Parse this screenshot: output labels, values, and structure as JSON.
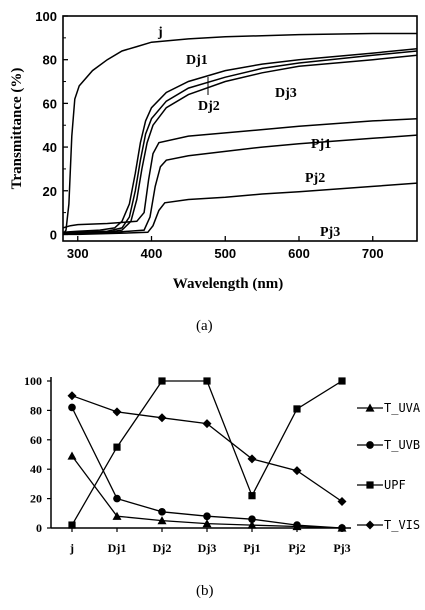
{
  "chart_data": [
    {
      "type": "line",
      "caption": "(a)",
      "xlabel": "Wavelength  (nm)",
      "ylabel": "Transmittance (%)",
      "xlim": [
        280,
        760
      ],
      "ylim": [
        -3,
        100
      ],
      "xticks": [
        300,
        400,
        500,
        600,
        700
      ],
      "yticks": [
        0,
        20,
        40,
        60,
        80,
        100
      ],
      "grid": false,
      "series": [
        {
          "name": "j",
          "points": [
            [
              280,
              0
            ],
            [
              284,
              2
            ],
            [
              288,
              14
            ],
            [
              292,
              45
            ],
            [
              296,
              62
            ],
            [
              302,
              68
            ],
            [
              320,
              75
            ],
            [
              340,
              80
            ],
            [
              360,
              84
            ],
            [
              380,
              86
            ],
            [
              400,
              88
            ],
            [
              450,
              89.5
            ],
            [
              500,
              90.5
            ],
            [
              550,
              91
            ],
            [
              600,
              91.5
            ],
            [
              700,
              92
            ],
            [
              760,
              92
            ]
          ]
        },
        {
          "name": "Dj1",
          "points": [
            [
              280,
              1
            ],
            [
              300,
              1.5
            ],
            [
              330,
              2
            ],
            [
              350,
              3
            ],
            [
              360,
              6
            ],
            [
              370,
              14
            ],
            [
              378,
              28
            ],
            [
              385,
              42
            ],
            [
              392,
              52
            ],
            [
              400,
              58
            ],
            [
              420,
              65
            ],
            [
              450,
              70
            ],
            [
              500,
              75
            ],
            [
              550,
              78
            ],
            [
              600,
              80
            ],
            [
              700,
              83
            ],
            [
              760,
              85
            ]
          ]
        },
        {
          "name": "Dj2",
          "points": [
            [
              280,
              0.5
            ],
            [
              300,
              1
            ],
            [
              340,
              1.5
            ],
            [
              360,
              3
            ],
            [
              370,
              8
            ],
            [
              378,
              20
            ],
            [
              385,
              34
            ],
            [
              392,
              46
            ],
            [
              400,
              53
            ],
            [
              420,
              61
            ],
            [
              450,
              67
            ],
            [
              500,
              72
            ],
            [
              550,
              76
            ],
            [
              600,
              78.5
            ],
            [
              700,
              82
            ],
            [
              760,
              84
            ]
          ]
        },
        {
          "name": "Dj3",
          "points": [
            [
              280,
              0.2
            ],
            [
              300,
              0.5
            ],
            [
              340,
              1
            ],
            [
              360,
              2
            ],
            [
              372,
              6
            ],
            [
              380,
              16
            ],
            [
              387,
              30
            ],
            [
              394,
              42
            ],
            [
              402,
              50
            ],
            [
              420,
              58
            ],
            [
              450,
              64
            ],
            [
              500,
              70
            ],
            [
              550,
              74
            ],
            [
              600,
              77
            ],
            [
              700,
              80
            ],
            [
              760,
              82
            ]
          ]
        },
        {
          "name": "Pj1",
          "points": [
            [
              280,
              3
            ],
            [
              290,
              4
            ],
            [
              300,
              4.5
            ],
            [
              340,
              5
            ],
            [
              380,
              6
            ],
            [
              390,
              10
            ],
            [
              396,
              25
            ],
            [
              402,
              37
            ],
            [
              410,
              42
            ],
            [
              450,
              45
            ],
            [
              500,
              46.5
            ],
            [
              550,
              48
            ],
            [
              600,
              49.5
            ],
            [
              700,
              52
            ],
            [
              760,
              53
            ]
          ]
        },
        {
          "name": "Pj2",
          "points": [
            [
              280,
              0
            ],
            [
              300,
              0.5
            ],
            [
              350,
              1
            ],
            [
              390,
              2
            ],
            [
              398,
              8
            ],
            [
              405,
              22
            ],
            [
              412,
              31
            ],
            [
              420,
              34
            ],
            [
              450,
              36
            ],
            [
              500,
              38
            ],
            [
              550,
              40
            ],
            [
              600,
              41.5
            ],
            [
              700,
              44
            ],
            [
              760,
              45.5
            ]
          ]
        },
        {
          "name": "Pj3",
          "points": [
            [
              280,
              0
            ],
            [
              300,
              0
            ],
            [
              350,
              0.5
            ],
            [
              395,
              1
            ],
            [
              402,
              4
            ],
            [
              410,
              11
            ],
            [
              418,
              14.5
            ],
            [
              450,
              16
            ],
            [
              500,
              17
            ],
            [
              550,
              18.5
            ],
            [
              600,
              19.5
            ],
            [
              700,
              22
            ],
            [
              760,
              23.5
            ]
          ]
        }
      ],
      "curve_labels": [
        "j",
        "Dj1",
        "Dj2",
        "Dj3",
        "Pj1",
        "Pj2",
        "Pj3"
      ]
    },
    {
      "type": "line",
      "caption": "(b)",
      "categories": [
        "j",
        "Dj1",
        "Dj2",
        "Dj3",
        "Pj1",
        "Pj2",
        "Pj3"
      ],
      "ylim": [
        0,
        100
      ],
      "yticks": [
        0,
        20,
        40,
        60,
        80,
        100
      ],
      "legend_position": "right",
      "series": [
        {
          "name": "T_UVA",
          "marker": "triangle",
          "values": [
            49,
            8,
            5,
            3,
            2,
            1,
            0
          ]
        },
        {
          "name": "T_UVB",
          "marker": "circle",
          "values": [
            82,
            20,
            11,
            8,
            6,
            2,
            0
          ]
        },
        {
          "name": "UPF",
          "marker": "square",
          "values": [
            2,
            55,
            100,
            100,
            22,
            81,
            100
          ]
        },
        {
          "name": "T_VIS",
          "marker": "diamond",
          "values": [
            90,
            79,
            75,
            71,
            47,
            39,
            18
          ]
        }
      ]
    }
  ]
}
